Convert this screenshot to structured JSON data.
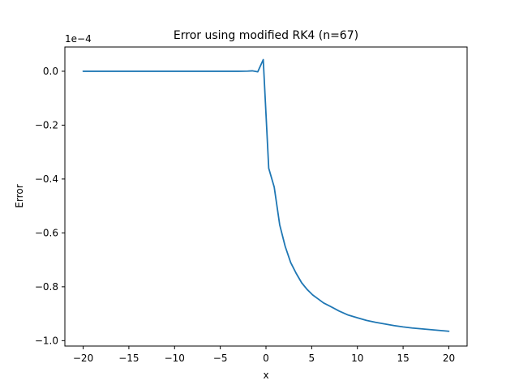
{
  "chart_data": {
    "type": "line",
    "title": "Error using modified RK4 (n=67)",
    "xlabel": "x",
    "ylabel": "Error",
    "y_offset_label": "1e−4",
    "xlim": [
      -22,
      22
    ],
    "ylim": [
      -1.02,
      0.09
    ],
    "grid": false,
    "x_ticks": [
      -20,
      -15,
      -10,
      -5,
      0,
      5,
      10,
      15,
      20
    ],
    "x_tick_labels": [
      "−20",
      "−15",
      "−10",
      "−5",
      "0",
      "5",
      "10",
      "15",
      "20"
    ],
    "y_ticks": [
      0.0,
      -0.2,
      -0.4,
      -0.6,
      -0.8,
      -1.0
    ],
    "y_tick_labels": [
      "0.0",
      "−0.2",
      "−0.4",
      "−0.6",
      "−0.8",
      "−1.0"
    ],
    "series": [
      {
        "color": "#1f77b4",
        "x": [
          -20,
          -18,
          -16,
          -14,
          -12,
          -10,
          -8,
          -6,
          -4,
          -3,
          -2,
          -1.5,
          -0.9,
          -0.3,
          0.3,
          0.9,
          1.5,
          2.1,
          2.7,
          3.3,
          3.9,
          4.5,
          5.1,
          5.7,
          6.3,
          7,
          8,
          9,
          10,
          11,
          12,
          13,
          14,
          15,
          16,
          17,
          18,
          19,
          20
        ],
        "y": [
          0,
          0,
          0,
          0,
          0,
          0,
          0,
          0,
          0,
          0,
          0.0005,
          0.0015,
          -0.002,
          0.043,
          -0.36,
          -0.43,
          -0.57,
          -0.65,
          -0.71,
          -0.75,
          -0.785,
          -0.81,
          -0.83,
          -0.845,
          -0.86,
          -0.872,
          -0.89,
          -0.905,
          -0.915,
          -0.925,
          -0.932,
          -0.938,
          -0.944,
          -0.949,
          -0.953,
          -0.956,
          -0.959,
          -0.962,
          -0.965
        ]
      }
    ]
  }
}
